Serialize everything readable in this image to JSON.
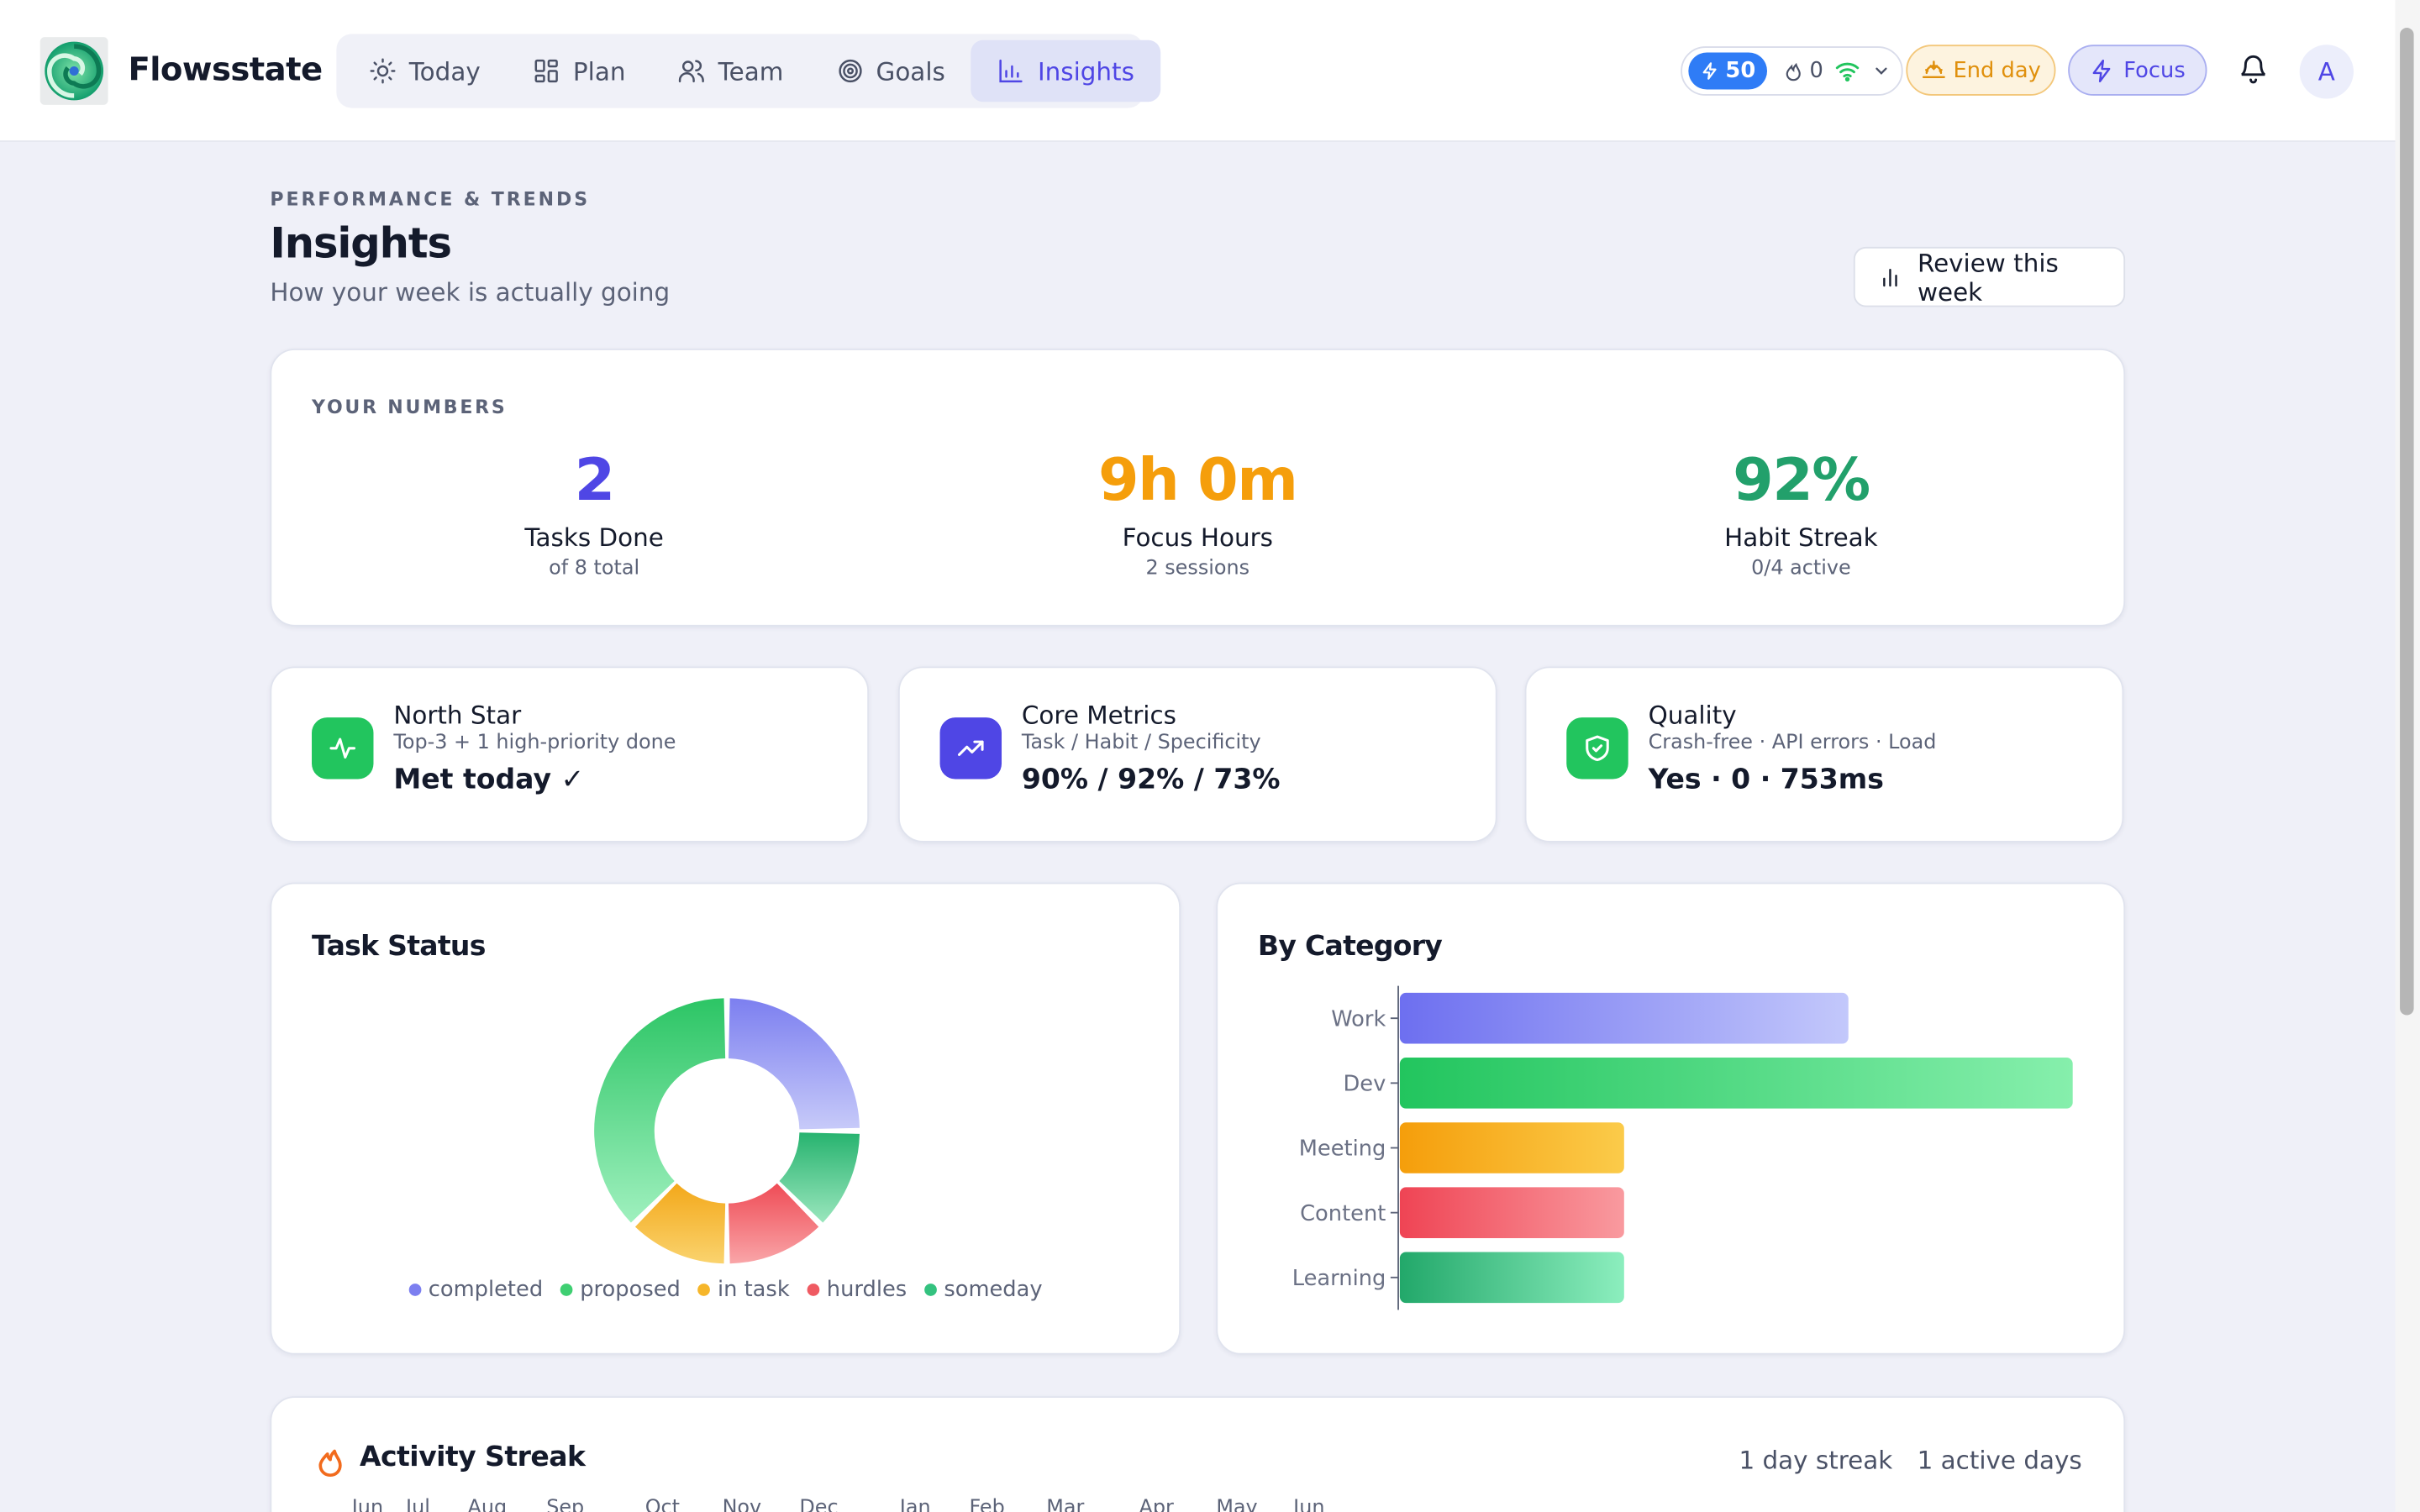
{
  "app": {
    "name": "Flowsstate"
  },
  "nav": {
    "items": [
      {
        "label": "Today",
        "icon": "sun-icon"
      },
      {
        "label": "Plan",
        "icon": "grid-icon"
      },
      {
        "label": "Team",
        "icon": "users-icon"
      },
      {
        "label": "Goals",
        "icon": "target-icon"
      },
      {
        "label": "Insights",
        "icon": "bar-chart-icon",
        "active": true
      }
    ]
  },
  "header": {
    "energy": "50",
    "streak": "0",
    "end_day": "End day",
    "focus": "Focus",
    "avatar": "A"
  },
  "page": {
    "eyebrow": "PERFORMANCE & TRENDS",
    "title": "Insights",
    "subtitle": "How your week is actually going",
    "review_button": "Review this week"
  },
  "numbers": {
    "eyebrow": "YOUR NUMBERS",
    "items": [
      {
        "value": "2",
        "label": "Tasks Done",
        "sub": "of 8 total",
        "color": "#4f46e5"
      },
      {
        "value": "9h 0m",
        "label": "Focus Hours",
        "sub": "2 sessions",
        "color": "#f59e0b"
      },
      {
        "value": "92%",
        "label": "Habit Streak",
        "sub": "0/4 active",
        "color": "#22a06b"
      }
    ]
  },
  "metrics": [
    {
      "title": "North Star",
      "sub": "Top-3 + 1 high-priority done",
      "value": "Met today ✓",
      "color": "#22c55e",
      "icon": "activity-icon"
    },
    {
      "title": "Core Metrics",
      "sub": "Task / Habit / Specificity",
      "value": "90% / 92% / 73%",
      "color": "#4f46e5",
      "icon": "trending-up-icon"
    },
    {
      "title": "Quality",
      "sub": "Crash-free · API errors · Load",
      "value": "Yes · 0 · 753ms",
      "color": "#22c55e",
      "icon": "shield-check-icon"
    }
  ],
  "task_status": {
    "title": "Task Status",
    "legend": [
      "completed",
      "proposed",
      "in task",
      "hurdles",
      "someday"
    ],
    "colors": [
      "#7c7ff0",
      "#3fcf72",
      "#f6b62a",
      "#ef5a62",
      "#34c27f"
    ]
  },
  "by_category": {
    "title": "By Category",
    "labels": [
      "Work",
      "Dev",
      "Meeting",
      "Content",
      "Learning"
    ]
  },
  "activity": {
    "title": "Activity Streak",
    "streak": "1 day streak",
    "active": "1 active days",
    "months": [
      "Jun",
      "Jul",
      "Aug",
      "Sep",
      "Oct",
      "Nov",
      "Dec",
      "Jan",
      "Feb",
      "Mar",
      "Apr",
      "May",
      "Jun"
    ]
  },
  "chart_data": [
    {
      "type": "pie",
      "title": "Task Status",
      "categories": [
        "completed",
        "proposed",
        "in task",
        "hurdles",
        "someday"
      ],
      "values": [
        2,
        3,
        1,
        1,
        1
      ]
    },
    {
      "type": "bar",
      "title": "By Category",
      "orientation": "horizontal",
      "categories": [
        "Work",
        "Dev",
        "Meeting",
        "Content",
        "Learning"
      ],
      "values": [
        2,
        3,
        1,
        1,
        1
      ]
    }
  ]
}
